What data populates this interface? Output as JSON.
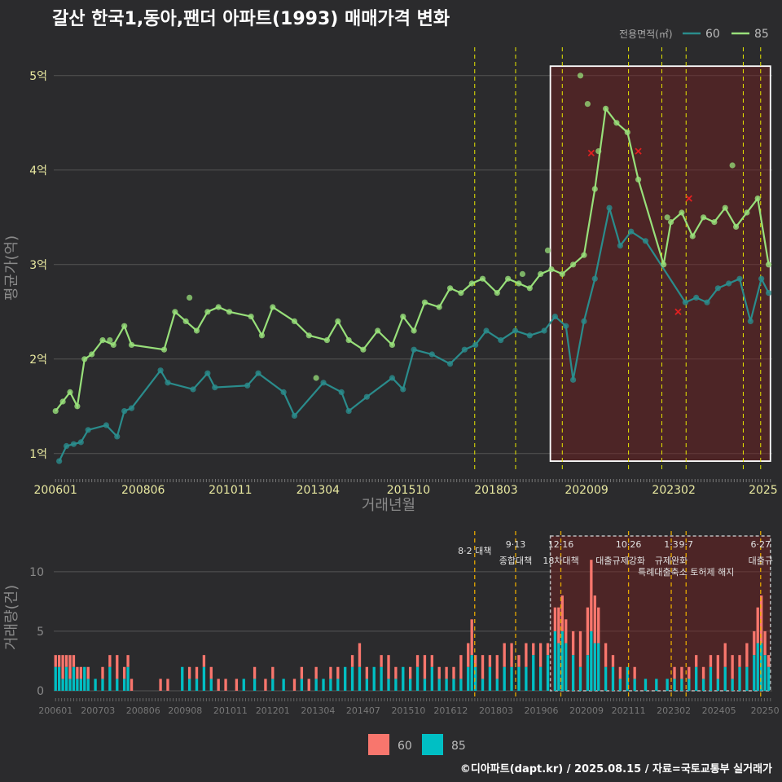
{
  "title": "갈산 한국1,동아,팬더 아파트(1993) 매매가격 변화",
  "footer": "©디아파트(dapt.kr) / 2025.08.15 / 자료=국토교통부 실거래가",
  "legend": {
    "title": "전용면적(㎡)",
    "items": [
      {
        "name": "60",
        "color": "#2a8c8c"
      },
      {
        "name": "85",
        "color": "#98e07a"
      }
    ]
  },
  "bottom_legend": [
    {
      "name": "60",
      "color": "#f8766d"
    },
    {
      "name": "85",
      "color": "#00bfc4"
    }
  ],
  "chart_data": [
    {
      "type": "line",
      "title": "갈산 한국1,동아,팬더 아파트(1993) 매매가격 변화",
      "xlabel": "거래년월",
      "ylabel": "평균가(억)",
      "x_tick_labels": [
        "200601",
        "200806",
        "201011",
        "201304",
        "201510",
        "201803",
        "202009",
        "202302",
        "2025"
      ],
      "y_tick_labels": [
        "1억",
        "2억",
        "3억",
        "4억",
        "5억"
      ],
      "ylim": [
        0.8,
        5.3
      ],
      "policy_dates": [
        2017.58,
        2018.71,
        2020.0,
        2021.83,
        2022.75,
        2023.42,
        2025.0,
        2025.48
      ],
      "highlight_box": {
        "x": [
          2019.67,
          2025.75
        ],
        "y": [
          0.92,
          5.1
        ]
      },
      "series": [
        {
          "name": "60",
          "points": [
            [
              2006.1,
              0.92
            ],
            [
              2006.3,
              1.08
            ],
            [
              2006.5,
              1.1
            ],
            [
              2006.7,
              1.12
            ],
            [
              2006.9,
              1.25
            ],
            [
              2007.4,
              1.3
            ],
            [
              2007.7,
              1.18
            ],
            [
              2007.9,
              1.45
            ],
            [
              2008.1,
              1.48
            ],
            [
              2008.9,
              1.88
            ],
            [
              2009.1,
              1.75
            ],
            [
              2009.8,
              1.68
            ],
            [
              2010.2,
              1.85
            ],
            [
              2010.4,
              1.7
            ],
            [
              2011.3,
              1.72
            ],
            [
              2011.6,
              1.85
            ],
            [
              2012.3,
              1.65
            ],
            [
              2012.6,
              1.4
            ],
            [
              2013.4,
              1.75
            ],
            [
              2013.9,
              1.65
            ],
            [
              2014.1,
              1.45
            ],
            [
              2014.6,
              1.6
            ],
            [
              2015.3,
              1.8
            ],
            [
              2015.6,
              1.68
            ],
            [
              2015.9,
              2.1
            ],
            [
              2016.4,
              2.05
            ],
            [
              2016.9,
              1.95
            ],
            [
              2017.3,
              2.1
            ],
            [
              2017.6,
              2.15
            ],
            [
              2017.9,
              2.3
            ],
            [
              2018.3,
              2.2
            ],
            [
              2018.7,
              2.3
            ],
            [
              2019.1,
              2.25
            ],
            [
              2019.5,
              2.3
            ],
            [
              2019.8,
              2.45
            ],
            [
              2020.1,
              2.35
            ],
            [
              2020.3,
              1.78
            ],
            [
              2020.6,
              2.4
            ],
            [
              2020.9,
              2.85
            ],
            [
              2021.3,
              3.6
            ],
            [
              2021.6,
              3.2
            ],
            [
              2021.9,
              3.35
            ],
            [
              2022.3,
              3.25
            ],
            [
              2023.4,
              2.6
            ],
            [
              2023.7,
              2.65
            ],
            [
              2024.0,
              2.6
            ],
            [
              2024.3,
              2.75
            ],
            [
              2024.6,
              2.8
            ],
            [
              2024.9,
              2.85
            ],
            [
              2025.2,
              2.4
            ],
            [
              2025.5,
              2.85
            ],
            [
              2025.7,
              2.7
            ]
          ]
        },
        {
          "name": "85",
          "points": [
            [
              2006.0,
              1.45
            ],
            [
              2006.2,
              1.55
            ],
            [
              2006.4,
              1.65
            ],
            [
              2006.6,
              1.5
            ],
            [
              2006.8,
              2.0
            ],
            [
              2007.0,
              2.05
            ],
            [
              2007.3,
              2.2
            ],
            [
              2007.6,
              2.15
            ],
            [
              2007.9,
              2.35
            ],
            [
              2008.1,
              2.15
            ],
            [
              2009.0,
              2.1
            ],
            [
              2009.3,
              2.5
            ],
            [
              2009.6,
              2.4
            ],
            [
              2009.9,
              2.3
            ],
            [
              2010.2,
              2.5
            ],
            [
              2010.5,
              2.55
            ],
            [
              2010.8,
              2.5
            ],
            [
              2011.4,
              2.45
            ],
            [
              2011.7,
              2.25
            ],
            [
              2012.0,
              2.55
            ],
            [
              2012.6,
              2.4
            ],
            [
              2013.0,
              2.25
            ],
            [
              2013.5,
              2.2
            ],
            [
              2013.8,
              2.4
            ],
            [
              2014.1,
              2.2
            ],
            [
              2014.5,
              2.1
            ],
            [
              2014.9,
              2.3
            ],
            [
              2015.3,
              2.15
            ],
            [
              2015.6,
              2.45
            ],
            [
              2015.9,
              2.3
            ],
            [
              2016.2,
              2.6
            ],
            [
              2016.6,
              2.55
            ],
            [
              2016.9,
              2.75
            ],
            [
              2017.2,
              2.7
            ],
            [
              2017.5,
              2.8
            ],
            [
              2017.8,
              2.85
            ],
            [
              2018.2,
              2.7
            ],
            [
              2018.5,
              2.85
            ],
            [
              2018.8,
              2.8
            ],
            [
              2019.1,
              2.75
            ],
            [
              2019.4,
              2.9
            ],
            [
              2019.7,
              2.95
            ],
            [
              2020.0,
              2.9
            ],
            [
              2020.3,
              3.0
            ],
            [
              2020.6,
              3.1
            ],
            [
              2020.9,
              3.8
            ],
            [
              2021.2,
              4.65
            ],
            [
              2021.5,
              4.5
            ],
            [
              2021.8,
              4.4
            ],
            [
              2022.1,
              3.9
            ],
            [
              2022.8,
              3.0
            ],
            [
              2023.0,
              3.45
            ],
            [
              2023.3,
              3.55
            ],
            [
              2023.6,
              3.3
            ],
            [
              2023.9,
              3.5
            ],
            [
              2024.2,
              3.45
            ],
            [
              2024.5,
              3.6
            ],
            [
              2024.8,
              3.4
            ],
            [
              2025.1,
              3.55
            ],
            [
              2025.4,
              3.7
            ],
            [
              2025.7,
              3.0
            ]
          ]
        }
      ],
      "scatter_extra": [
        [
          2020.5,
          5.0
        ],
        [
          2020.7,
          4.7
        ],
        [
          2021.0,
          4.2
        ],
        [
          2024.7,
          4.05
        ],
        [
          2009.7,
          2.65
        ],
        [
          2013.2,
          1.8
        ],
        [
          2007.5,
          2.2
        ],
        [
          2018.9,
          2.9
        ],
        [
          2019.6,
          3.15
        ],
        [
          2022.9,
          3.5
        ]
      ],
      "cancelled": [
        [
          2020.8,
          4.18
        ],
        [
          2022.1,
          4.2
        ],
        [
          2023.2,
          2.5
        ],
        [
          2023.5,
          3.7
        ]
      ]
    },
    {
      "type": "bar",
      "xlabel": "",
      "ylabel": "거래량(건)",
      "x_tick_labels": [
        "200601",
        "200703",
        "200806",
        "200908",
        "201011",
        "201201",
        "201304",
        "201407",
        "201510",
        "201612",
        "201803",
        "201906",
        "202009",
        "202111",
        "202302",
        "202405",
        "20250"
      ],
      "y_tick_labels": [
        "0",
        "5",
        "10"
      ],
      "ylim": [
        0,
        13
      ],
      "stacked_series": [
        "60",
        "85"
      ],
      "policies": [
        {
          "date": "8·2 대책",
          "label2": "",
          "x": 2017.58
        },
        {
          "date": "9·13",
          "label2": "종합대책",
          "x": 2018.71
        },
        {
          "date": "12·16",
          "label2": "18차대책",
          "x": 2019.96
        },
        {
          "date": "10·26",
          "label2": "대출규제강화",
          "x": 2021.83
        },
        {
          "date": "1·3",
          "label2": "규제완화",
          "x": 2023.01
        },
        {
          "date": "9·7",
          "label2": "특례대출축소 토허제 해지",
          "x": 2023.42
        },
        {
          "date": "6·27",
          "label2": "대출규",
          "x": 2025.48
        }
      ],
      "highlight_box": {
        "x": [
          2019.67,
          2025.75
        ],
        "y": [
          0,
          13
        ]
      },
      "monthly": [
        [
          2006.0,
          1,
          2
        ],
        [
          2006.1,
          1,
          2
        ],
        [
          2006.2,
          2,
          1
        ],
        [
          2006.3,
          1,
          2
        ],
        [
          2006.4,
          2,
          1
        ],
        [
          2006.5,
          1,
          2
        ],
        [
          2006.6,
          1,
          1
        ],
        [
          2006.7,
          1,
          1
        ],
        [
          2006.8,
          0,
          2
        ],
        [
          2006.9,
          1,
          1
        ],
        [
          2007.1,
          0,
          1
        ],
        [
          2007.3,
          1,
          1
        ],
        [
          2007.5,
          1,
          2
        ],
        [
          2007.7,
          2,
          1
        ],
        [
          2007.9,
          1,
          1
        ],
        [
          2008.0,
          1,
          2
        ],
        [
          2008.1,
          1,
          0
        ],
        [
          2008.9,
          1,
          0
        ],
        [
          2009.1,
          1,
          0
        ],
        [
          2009.5,
          0,
          2
        ],
        [
          2009.7,
          1,
          1
        ],
        [
          2009.9,
          1,
          1
        ],
        [
          2010.1,
          1,
          2
        ],
        [
          2010.3,
          1,
          1
        ],
        [
          2010.5,
          1,
          0
        ],
        [
          2010.7,
          1,
          0
        ],
        [
          2011.0,
          1,
          0
        ],
        [
          2011.2,
          0,
          1
        ],
        [
          2011.5,
          1,
          1
        ],
        [
          2011.8,
          1,
          0
        ],
        [
          2012.0,
          1,
          1
        ],
        [
          2012.3,
          0,
          1
        ],
        [
          2012.6,
          1,
          0
        ],
        [
          2012.8,
          1,
          1
        ],
        [
          2013.0,
          1,
          0
        ],
        [
          2013.2,
          1,
          1
        ],
        [
          2013.4,
          0,
          1
        ],
        [
          2013.6,
          1,
          1
        ],
        [
          2013.8,
          1,
          1
        ],
        [
          2014.0,
          0,
          2
        ],
        [
          2014.2,
          1,
          2
        ],
        [
          2014.4,
          2,
          2
        ],
        [
          2014.6,
          1,
          1
        ],
        [
          2014.8,
          0,
          2
        ],
        [
          2015.0,
          1,
          2
        ],
        [
          2015.2,
          2,
          1
        ],
        [
          2015.4,
          1,
          1
        ],
        [
          2015.6,
          0,
          2
        ],
        [
          2015.8,
          1,
          1
        ],
        [
          2016.0,
          1,
          2
        ],
        [
          2016.2,
          2,
          1
        ],
        [
          2016.4,
          1,
          2
        ],
        [
          2016.6,
          1,
          1
        ],
        [
          2016.8,
          1,
          1
        ],
        [
          2017.0,
          1,
          1
        ],
        [
          2017.2,
          2,
          1
        ],
        [
          2017.4,
          2,
          2
        ],
        [
          2017.5,
          3,
          3
        ],
        [
          2017.6,
          1,
          2
        ],
        [
          2017.8,
          2,
          1
        ],
        [
          2018.0,
          1,
          2
        ],
        [
          2018.2,
          2,
          1
        ],
        [
          2018.4,
          2,
          2
        ],
        [
          2018.6,
          2,
          2
        ],
        [
          2018.8,
          1,
          2
        ],
        [
          2019.0,
          2,
          2
        ],
        [
          2019.2,
          1,
          3
        ],
        [
          2019.4,
          2,
          2
        ],
        [
          2019.6,
          1,
          3
        ],
        [
          2019.8,
          2,
          5
        ],
        [
          2019.9,
          3,
          4
        ],
        [
          2020.0,
          3,
          5
        ],
        [
          2020.1,
          2,
          4
        ],
        [
          2020.3,
          2,
          3
        ],
        [
          2020.5,
          3,
          2
        ],
        [
          2020.7,
          4,
          3
        ],
        [
          2020.8,
          6,
          5
        ],
        [
          2020.9,
          4,
          4
        ],
        [
          2021.0,
          3,
          4
        ],
        [
          2021.2,
          2,
          2
        ],
        [
          2021.4,
          1,
          2
        ],
        [
          2021.6,
          1,
          1
        ],
        [
          2021.8,
          0,
          2
        ],
        [
          2022.0,
          1,
          1
        ],
        [
          2022.3,
          0,
          1
        ],
        [
          2022.6,
          0,
          1
        ],
        [
          2022.9,
          0,
          1
        ],
        [
          2023.1,
          1,
          1
        ],
        [
          2023.3,
          1,
          1
        ],
        [
          2023.5,
          1,
          1
        ],
        [
          2023.7,
          1,
          2
        ],
        [
          2023.9,
          1,
          1
        ],
        [
          2024.1,
          1,
          2
        ],
        [
          2024.3,
          2,
          1
        ],
        [
          2024.5,
          2,
          2
        ],
        [
          2024.7,
          2,
          1
        ],
        [
          2024.9,
          1,
          2
        ],
        [
          2025.1,
          2,
          2
        ],
        [
          2025.3,
          2,
          3
        ],
        [
          2025.4,
          3,
          4
        ],
        [
          2025.5,
          4,
          4
        ],
        [
          2025.6,
          2,
          3
        ],
        [
          2025.7,
          1,
          2
        ]
      ]
    }
  ]
}
